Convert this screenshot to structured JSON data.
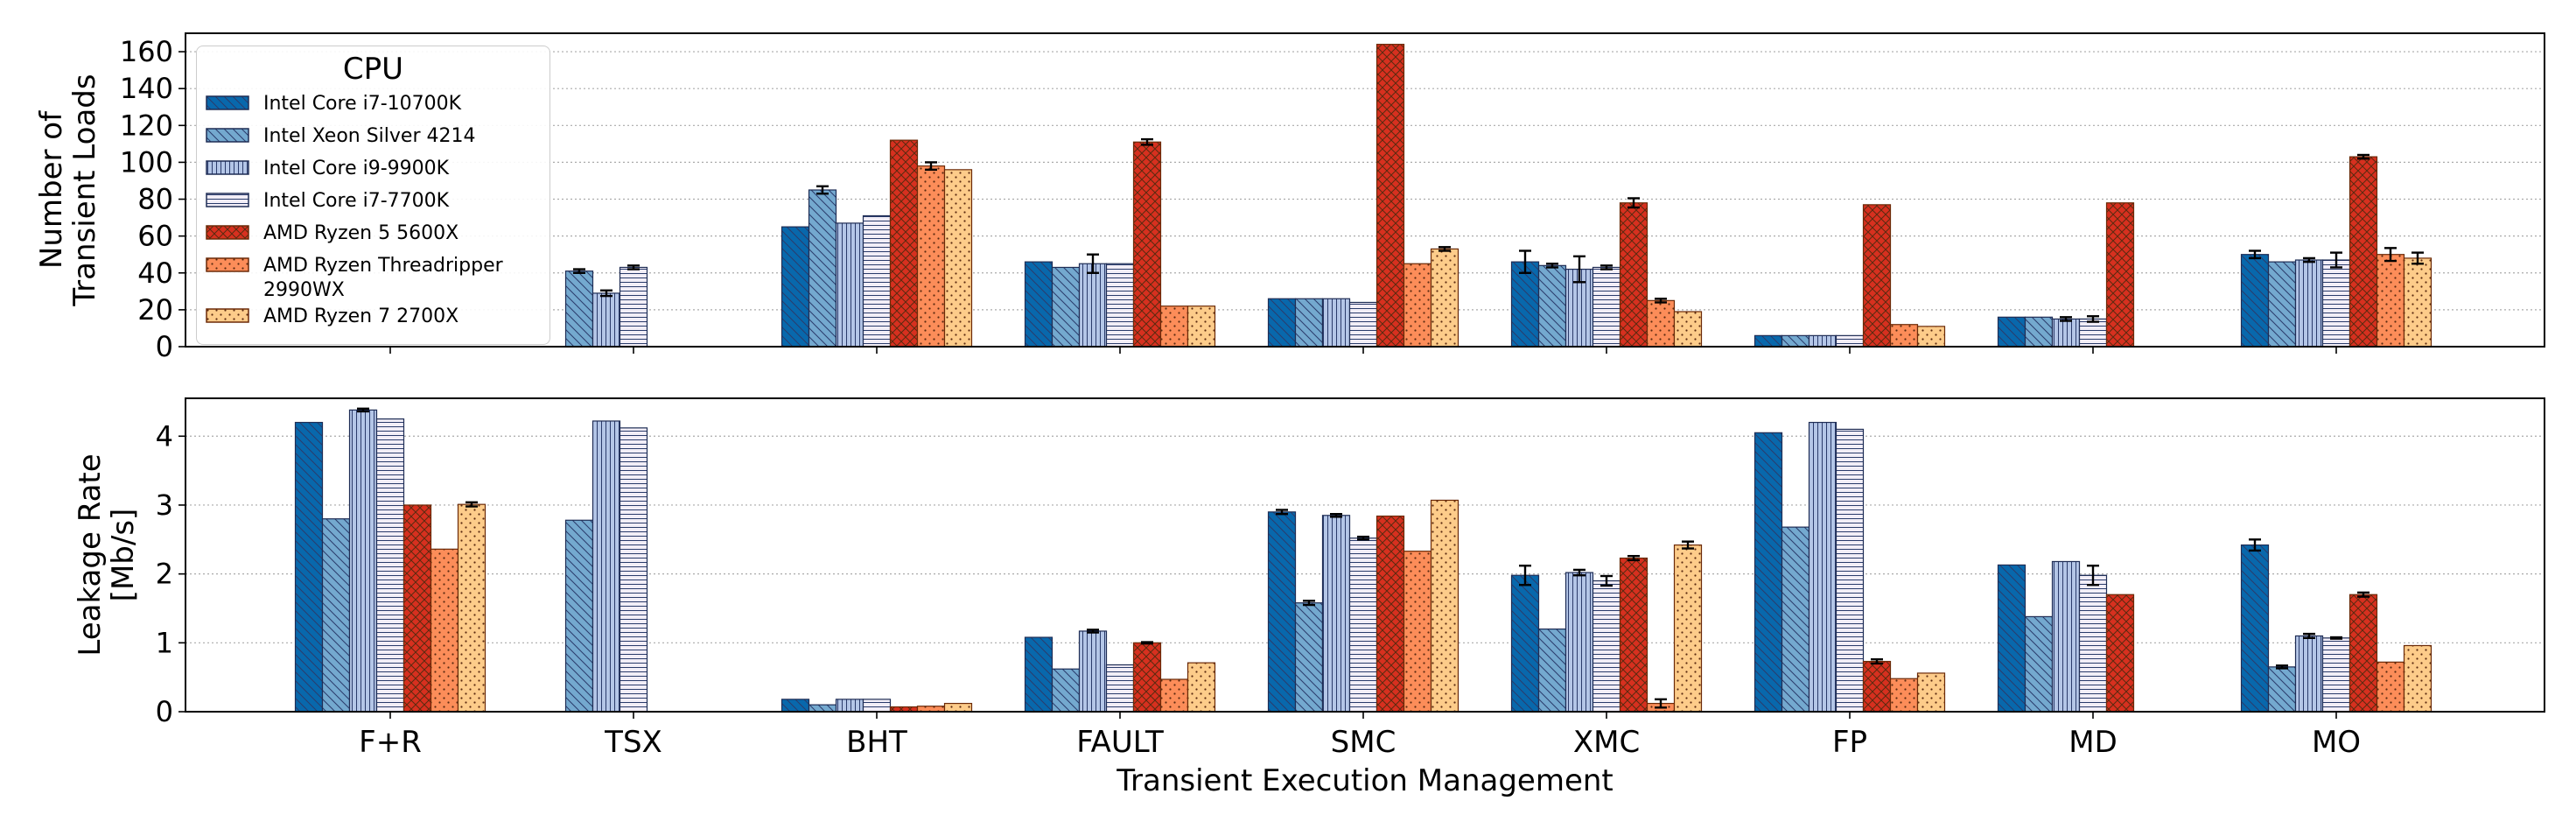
{
  "chart_data": {
    "type": "bar",
    "xlabel": "Transient Execution Management",
    "categories": [
      "F+R",
      "TSX",
      "BHT",
      "FAULT",
      "SMC",
      "XMC",
      "FP",
      "MD",
      "MO"
    ],
    "legend": {
      "title": "CPU",
      "placement": "upper left (top panel)"
    },
    "series": [
      {
        "name": "Intel Core i7-10700K",
        "color": "#0868ac",
        "hatch": "diagonal-back"
      },
      {
        "name": "Intel Xeon Silver 4214",
        "color": "#74a9cf",
        "hatch": "diagonal-back"
      },
      {
        "name": "Intel Core i9-9900K",
        "color": "#b4c6e7",
        "hatch": "vertical"
      },
      {
        "name": "Intel Core i7-7700K",
        "color": "#f2eef7",
        "hatch": "horizontal"
      },
      {
        "name": "AMD Ryzen 5 5600X",
        "color": "#d7301f",
        "hatch": "cross"
      },
      {
        "name": "AMD Ryzen Threadripper 2990WX",
        "color": "#fc8d59",
        "hatch": "dots"
      },
      {
        "name": "AMD Ryzen 7 2700X",
        "color": "#fdcc8a",
        "hatch": "dots"
      }
    ],
    "panels": [
      {
        "ylabel": [
          "Number of",
          "Transient Loads"
        ],
        "ylim": [
          0,
          170
        ],
        "yticks": [
          0,
          20,
          40,
          60,
          80,
          100,
          120,
          140,
          160
        ],
        "grid": true,
        "values": [
          [
            null,
            null,
            65,
            46,
            26,
            46,
            6,
            16,
            50
          ],
          [
            null,
            41,
            85,
            43,
            26,
            44,
            6,
            16,
            46
          ],
          [
            null,
            29,
            67,
            45,
            26,
            42,
            6,
            15,
            47
          ],
          [
            null,
            43,
            71,
            45,
            24,
            43,
            6,
            15,
            47
          ],
          [
            null,
            null,
            112,
            111,
            164,
            78,
            77,
            78,
            103
          ],
          [
            null,
            null,
            98,
            22,
            45,
            25,
            12,
            null,
            50
          ],
          [
            null,
            null,
            96,
            22,
            53,
            19,
            11,
            null,
            48
          ]
        ],
        "errors": [
          [
            null,
            null,
            0,
            0,
            0,
            6,
            0,
            0,
            2
          ],
          [
            null,
            1,
            2,
            0,
            0,
            1,
            0,
            0,
            0
          ],
          [
            null,
            1.5,
            0,
            5,
            0,
            7,
            0,
            1,
            1
          ],
          [
            null,
            1,
            0,
            0,
            0,
            1,
            0,
            1.5,
            4
          ],
          [
            null,
            null,
            0,
            1.5,
            0,
            2.5,
            0,
            0,
            1
          ],
          [
            null,
            null,
            2,
            0,
            0,
            1,
            0,
            null,
            3.5
          ],
          [
            null,
            null,
            0,
            0,
            1,
            0,
            0,
            null,
            3
          ]
        ]
      },
      {
        "ylabel": [
          "Leakage Rate",
          "[Mb/s]"
        ],
        "ylim": [
          0,
          4.55
        ],
        "yticks": [
          0,
          1,
          2,
          3,
          4
        ],
        "grid": true,
        "values": [
          [
            4.2,
            null,
            0.18,
            1.08,
            2.9,
            1.98,
            4.05,
            2.13,
            2.42
          ],
          [
            2.8,
            2.78,
            0.1,
            0.62,
            1.58,
            1.2,
            2.68,
            1.38,
            0.65
          ],
          [
            4.38,
            4.22,
            0.18,
            1.17,
            2.85,
            2.02,
            4.2,
            2.18,
            1.1
          ],
          [
            4.25,
            4.12,
            0.18,
            0.68,
            2.52,
            1.9,
            4.1,
            1.98,
            1.07
          ],
          [
            3.0,
            null,
            0.07,
            1.0,
            2.84,
            2.23,
            0.73,
            1.7,
            1.7
          ],
          [
            2.36,
            null,
            0.08,
            0.47,
            2.33,
            0.12,
            0.48,
            null,
            0.72
          ],
          [
            3.01,
            null,
            0.12,
            0.71,
            3.07,
            2.42,
            0.56,
            null,
            0.96
          ]
        ],
        "errors": [
          [
            0,
            null,
            0,
            0,
            0.03,
            0.14,
            0,
            0,
            0.08
          ],
          [
            0,
            0,
            0,
            0,
            0.03,
            0,
            0,
            0,
            0.02
          ],
          [
            0.02,
            0,
            0,
            0.02,
            0.02,
            0.04,
            0,
            0,
            0.03
          ],
          [
            0,
            0,
            0,
            0,
            0.02,
            0.07,
            0,
            0.14,
            0.01
          ],
          [
            0,
            null,
            0,
            0.01,
            0,
            0.03,
            0.03,
            0,
            0.03
          ],
          [
            0,
            null,
            0,
            0,
            0,
            0.06,
            0,
            null,
            0
          ],
          [
            0.03,
            null,
            0,
            0,
            0,
            0.05,
            0,
            null,
            0
          ]
        ]
      }
    ]
  }
}
